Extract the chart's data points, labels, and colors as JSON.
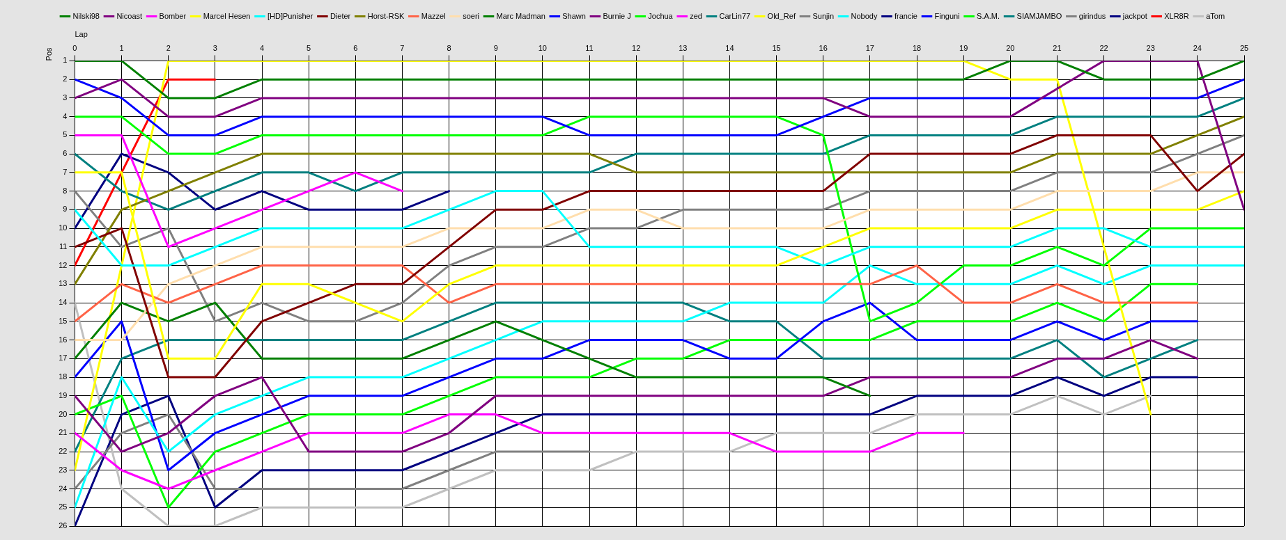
{
  "chart_data": {
    "type": "line",
    "xlabel": "Lap",
    "ylabel": "Pos",
    "x": [
      0,
      1,
      2,
      3,
      4,
      5,
      6,
      7,
      8,
      9,
      10,
      11,
      12,
      13,
      14,
      15,
      16,
      17,
      18,
      19,
      20,
      21,
      22,
      23,
      24,
      25
    ],
    "xlim": [
      0,
      25
    ],
    "xticks": [
      0,
      1,
      2,
      3,
      4,
      5,
      6,
      7,
      8,
      9,
      10,
      11,
      12,
      13,
      14,
      15,
      16,
      17,
      18,
      19,
      20,
      21,
      22,
      23,
      24,
      25
    ],
    "ylim": [
      26,
      1
    ],
    "yticks": [
      1,
      2,
      3,
      4,
      5,
      6,
      7,
      8,
      9,
      10,
      11,
      12,
      13,
      14,
      15,
      16,
      17,
      18,
      19,
      20,
      21,
      22,
      23,
      24,
      25,
      26
    ],
    "grid": true,
    "legend": "top",
    "marker": "none",
    "line_style": "solid",
    "series": [
      {
        "name": "Nilski98",
        "color": "#008000",
        "values": [
          1,
          1,
          3,
          3,
          2,
          2,
          2,
          2,
          2,
          2,
          2,
          2,
          2,
          2,
          2,
          2,
          2,
          2,
          2,
          2,
          1,
          1,
          2,
          2,
          2,
          1
        ]
      },
      {
        "name": "Nicoast",
        "color": "#800080",
        "values": [
          3,
          2,
          4,
          4,
          3,
          3,
          3,
          3,
          3,
          3,
          3,
          3,
          3,
          3,
          3,
          3,
          3,
          4,
          4,
          4,
          4,
          null,
          1,
          1,
          1,
          9
        ]
      },
      {
        "name": "Bomber",
        "color": "#ff00ff",
        "values": [
          5,
          5,
          11,
          10,
          9,
          8,
          7,
          8,
          null,
          null,
          null,
          null,
          null,
          null,
          null,
          null,
          null,
          null,
          null,
          null,
          null,
          null,
          null,
          null,
          null,
          null
        ]
      },
      {
        "name": "Marcel Hesen",
        "color": "#ffff00",
        "values": [
          7,
          7,
          17,
          17,
          13,
          13,
          14,
          15,
          13,
          12,
          12,
          12,
          12,
          12,
          12,
          12,
          11,
          10,
          10,
          10,
          10,
          9,
          9,
          9,
          9,
          8
        ]
      },
      {
        "name": "[HD]Punisher",
        "color": "#00ffff",
        "values": [
          9,
          12,
          12,
          11,
          10,
          10,
          10,
          10,
          9,
          8,
          8,
          11,
          11,
          11,
          11,
          11,
          12,
          11,
          11,
          11,
          11,
          10,
          10,
          11,
          11,
          11
        ]
      },
      {
        "name": "Dieter",
        "color": "#800000",
        "values": [
          11,
          10,
          18,
          18,
          15,
          14,
          13,
          13,
          11,
          9,
          9,
          8,
          8,
          8,
          8,
          8,
          8,
          6,
          6,
          6,
          6,
          5,
          5,
          5,
          8,
          6
        ]
      },
      {
        "name": "Horst-RSK",
        "color": "#808000",
        "values": [
          13,
          9,
          8,
          7,
          6,
          6,
          6,
          6,
          6,
          6,
          6,
          6,
          7,
          7,
          7,
          7,
          7,
          7,
          7,
          7,
          7,
          6,
          6,
          6,
          5,
          4
        ]
      },
      {
        "name": "Mazzel",
        "color": "#ff6347",
        "values": [
          15,
          13,
          14,
          13,
          12,
          12,
          12,
          12,
          14,
          13,
          13,
          13,
          13,
          13,
          13,
          13,
          13,
          13,
          12,
          14,
          14,
          13,
          14,
          14,
          14,
          null
        ]
      },
      {
        "name": "soeri",
        "color": "#ffdead",
        "values": [
          16,
          16,
          13,
          12,
          11,
          11,
          11,
          11,
          10,
          10,
          10,
          9,
          9,
          10,
          10,
          10,
          10,
          9,
          9,
          9,
          9,
          8,
          8,
          8,
          7,
          7
        ]
      },
      {
        "name": "Marc Madman",
        "color": "#008000",
        "values": [
          17,
          14,
          15,
          14,
          17,
          17,
          17,
          17,
          16,
          15,
          16,
          17,
          18,
          18,
          18,
          18,
          18,
          19,
          null,
          null,
          null,
          null,
          null,
          null,
          null,
          null
        ]
      },
      {
        "name": "Shawn",
        "color": "#0000ff",
        "values": [
          2,
          3,
          5,
          5,
          4,
          4,
          4,
          4,
          4,
          4,
          4,
          5,
          5,
          5,
          5,
          5,
          4,
          3,
          3,
          3,
          3,
          3,
          3,
          3,
          3,
          2
        ]
      },
      {
        "name": "Burnie J",
        "color": "#800080",
        "values": [
          19,
          22,
          21,
          19,
          18,
          22,
          22,
          22,
          21,
          19,
          19,
          19,
          19,
          19,
          19,
          19,
          19,
          18,
          18,
          18,
          18,
          17,
          17,
          16,
          17,
          null
        ]
      },
      {
        "name": "Jochua",
        "color": "#00ff00",
        "values": [
          4,
          4,
          6,
          6,
          5,
          5,
          5,
          5,
          5,
          5,
          5,
          4,
          4,
          4,
          4,
          4,
          5,
          15,
          14,
          12,
          12,
          11,
          12,
          10,
          10,
          10
        ]
      },
      {
        "name": "zed",
        "color": "#ff00ff",
        "values": [
          21,
          23,
          24,
          23,
          22,
          21,
          21,
          21,
          20,
          20,
          21,
          21,
          21,
          21,
          21,
          22,
          22,
          22,
          21,
          21,
          null,
          null,
          null,
          null,
          null,
          null
        ]
      },
      {
        "name": "CarLin77",
        "color": "#008080",
        "values": [
          6,
          8,
          9,
          8,
          7,
          7,
          8,
          7,
          7,
          7,
          7,
          7,
          6,
          6,
          6,
          6,
          6,
          5,
          5,
          5,
          5,
          4,
          4,
          4,
          4,
          3
        ]
      },
      {
        "name": "Old_Ref",
        "color": "#ffff00",
        "values": [
          23,
          null,
          1,
          1,
          1,
          1,
          1,
          1,
          1,
          1,
          1,
          1,
          1,
          1,
          1,
          1,
          1,
          1,
          1,
          1,
          2,
          2,
          null,
          20,
          null,
          null
        ]
      },
      {
        "name": "Sunjin",
        "color": "#808080",
        "values": [
          8,
          11,
          10,
          15,
          14,
          15,
          15,
          14,
          12,
          11,
          11,
          10,
          10,
          9,
          9,
          9,
          9,
          8,
          8,
          8,
          8,
          7,
          7,
          7,
          6,
          5
        ]
      },
      {
        "name": "Nobody",
        "color": "#00ffff",
        "values": [
          25,
          18,
          22,
          20,
          19,
          18,
          18,
          18,
          17,
          16,
          15,
          15,
          15,
          15,
          14,
          14,
          14,
          12,
          13,
          13,
          13,
          12,
          13,
          12,
          12,
          12
        ]
      },
      {
        "name": "francie",
        "color": "#000080",
        "values": [
          10,
          6,
          7,
          9,
          8,
          9,
          9,
          9,
          8,
          null,
          null,
          null,
          null,
          null,
          null,
          null,
          null,
          null,
          null,
          null,
          null,
          null,
          null,
          null,
          null,
          null
        ]
      },
      {
        "name": "Finguni",
        "color": "#0000ff",
        "values": [
          18,
          15,
          23,
          21,
          20,
          19,
          19,
          19,
          18,
          17,
          17,
          16,
          16,
          16,
          17,
          17,
          15,
          14,
          16,
          16,
          16,
          15,
          16,
          15,
          15,
          null
        ]
      },
      {
        "name": "S.A.M.",
        "color": "#00ff00",
        "values": [
          20,
          19,
          25,
          22,
          21,
          20,
          20,
          20,
          19,
          18,
          18,
          18,
          17,
          17,
          16,
          16,
          16,
          16,
          15,
          15,
          15,
          14,
          15,
          13,
          13,
          null
        ]
      },
      {
        "name": "SIAMJAMBO",
        "color": "#008080",
        "values": [
          22,
          17,
          16,
          16,
          16,
          16,
          16,
          16,
          15,
          14,
          14,
          14,
          14,
          14,
          15,
          15,
          17,
          17,
          17,
          17,
          17,
          16,
          18,
          17,
          16,
          null
        ]
      },
      {
        "name": "girindus",
        "color": "#808080",
        "values": [
          24,
          21,
          20,
          24,
          24,
          24,
          24,
          24,
          23,
          22,
          22,
          22,
          null,
          null,
          null,
          null,
          null,
          null,
          null,
          null,
          null,
          null,
          null,
          null,
          null,
          null
        ]
      },
      {
        "name": "jackpot",
        "color": "#000080",
        "values": [
          26,
          20,
          19,
          25,
          23,
          23,
          23,
          23,
          22,
          21,
          20,
          20,
          20,
          20,
          20,
          20,
          20,
          20,
          19,
          19,
          19,
          18,
          19,
          18,
          18,
          null
        ]
      },
      {
        "name": "XLR8R",
        "color": "#ff0000",
        "values": [
          12,
          null,
          2,
          2,
          null,
          null,
          null,
          null,
          null,
          null,
          null,
          null,
          null,
          null,
          null,
          null,
          null,
          null,
          null,
          null,
          null,
          null,
          null,
          null,
          null,
          null
        ]
      },
      {
        "name": "aTom",
        "color": "#c0c0c0",
        "values": [
          14,
          24,
          26,
          26,
          25,
          25,
          25,
          25,
          24,
          23,
          23,
          23,
          22,
          22,
          22,
          21,
          21,
          21,
          20,
          20,
          20,
          19,
          20,
          19,
          null,
          null
        ]
      }
    ]
  }
}
